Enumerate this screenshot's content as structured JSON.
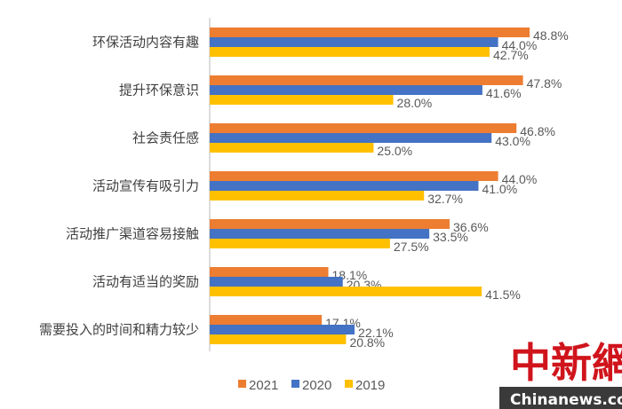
{
  "chart_data": {
    "type": "bar",
    "orientation": "horizontal",
    "categories": [
      "环保活动内容有趣",
      "提升环保意识",
      "社会责任感",
      "活动宣传有吸引力",
      "活动推广渠道容易接触",
      "活动有适当的奖励",
      "需要投入的时间和精力较少"
    ],
    "series": [
      {
        "name": "2021",
        "color": "#ED7D31",
        "values": [
          48.8,
          47.8,
          46.8,
          44.0,
          36.6,
          18.1,
          17.1
        ]
      },
      {
        "name": "2020",
        "color": "#4472C4",
        "values": [
          44.0,
          41.6,
          43.0,
          41.0,
          33.5,
          20.3,
          22.1
        ]
      },
      {
        "name": "2019",
        "color": "#FFC000",
        "values": [
          42.7,
          28.0,
          25.0,
          32.7,
          27.5,
          41.5,
          20.8
        ]
      }
    ],
    "value_suffix": "%",
    "xlim": [
      0,
      50
    ],
    "grid": false,
    "legend_position": "bottom"
  },
  "watermark": {
    "chinese": "中新網",
    "english": "Chinanews.com"
  }
}
